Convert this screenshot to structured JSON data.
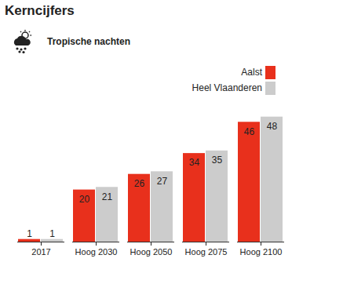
{
  "chart_data": {
    "type": "bar",
    "title": "Kerncijfers",
    "subtitle": "Tropische nachten",
    "categories": [
      "2017",
      "Hoog 2030",
      "Hoog 2050",
      "Hoog 2075",
      "Hoog 2100"
    ],
    "series": [
      {
        "name": "Aalst",
        "color": "#e8301c",
        "values": [
          1,
          20,
          26,
          34,
          46
        ]
      },
      {
        "name": "Heel Vlaanderen",
        "color": "#cccccc",
        "values": [
          1,
          21,
          27,
          35,
          48
        ]
      }
    ],
    "ylim": [
      0,
      50
    ],
    "grid": false,
    "legend": "top-right",
    "data_labels": true,
    "tick_labels": "x"
  }
}
